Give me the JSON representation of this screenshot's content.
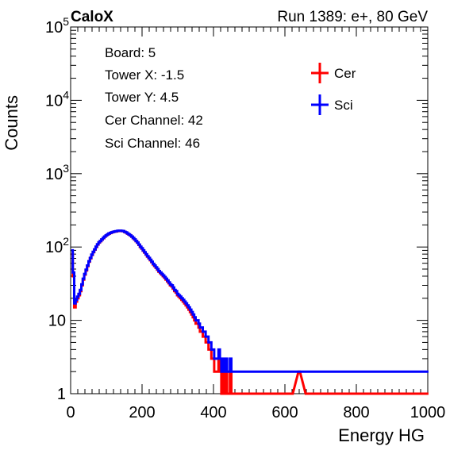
{
  "header": {
    "left": "CaloX",
    "right": "Run 1389: e+, 80 GeV"
  },
  "info_box": {
    "lines": [
      "Board: 5",
      "Tower X: -1.5",
      "Tower Y: 4.5",
      "Cer Channel: 42",
      "Sci Channel: 46"
    ]
  },
  "colors": {
    "cer": "#ff0000",
    "sci": "#0000ff",
    "axis": "#000000"
  },
  "chart_data": {
    "type": "histogram-step",
    "xlabel": "Energy HG",
    "ylabel": "Counts",
    "xlim": [
      0,
      1000
    ],
    "ylim": [
      1,
      100000
    ],
    "yscale": "log",
    "x_ticks": [
      0,
      200,
      400,
      600,
      800,
      1000
    ],
    "x_tick_labels": [
      "0",
      "200",
      "400",
      "600",
      "800",
      "1000"
    ],
    "y_ticks": [
      1,
      10,
      100,
      1000,
      10000,
      100000
    ],
    "y_tick_labels": [
      {
        "base": "1",
        "exp": ""
      },
      {
        "base": "10",
        "exp": ""
      },
      {
        "base": "10",
        "exp": "2"
      },
      {
        "base": "10",
        "exp": "3"
      },
      {
        "base": "10",
        "exp": "4"
      },
      {
        "base": "10",
        "exp": "5"
      }
    ],
    "legend": {
      "position": "top-right"
    },
    "series": [
      {
        "name": "Cer",
        "color": "#ff0000",
        "points": [
          [
            4,
            80
          ],
          [
            8,
            40
          ],
          [
            12,
            15
          ],
          [
            16,
            18
          ],
          [
            20,
            20
          ],
          [
            24,
            22
          ],
          [
            28,
            25
          ],
          [
            32,
            30
          ],
          [
            36,
            36
          ],
          [
            40,
            42
          ],
          [
            44,
            48
          ],
          [
            48,
            55
          ],
          [
            52,
            63
          ],
          [
            56,
            70
          ],
          [
            60,
            78
          ],
          [
            64,
            85
          ],
          [
            68,
            92
          ],
          [
            72,
            100
          ],
          [
            76,
            108
          ],
          [
            80,
            115
          ],
          [
            84,
            120
          ],
          [
            88,
            126
          ],
          [
            92,
            132
          ],
          [
            96,
            138
          ],
          [
            100,
            143
          ],
          [
            104,
            148
          ],
          [
            108,
            152
          ],
          [
            112,
            155
          ],
          [
            116,
            158
          ],
          [
            120,
            160
          ],
          [
            124,
            162
          ],
          [
            128,
            163
          ],
          [
            132,
            165
          ],
          [
            136,
            166
          ],
          [
            140,
            166
          ],
          [
            144,
            165
          ],
          [
            148,
            164
          ],
          [
            152,
            160
          ],
          [
            156,
            157
          ],
          [
            160,
            152
          ],
          [
            164,
            148
          ],
          [
            168,
            143
          ],
          [
            172,
            138
          ],
          [
            176,
            132
          ],
          [
            180,
            126
          ],
          [
            184,
            120
          ],
          [
            188,
            114
          ],
          [
            192,
            107
          ],
          [
            196,
            100
          ],
          [
            200,
            95
          ],
          [
            204,
            89
          ],
          [
            208,
            84
          ],
          [
            212,
            79
          ],
          [
            216,
            74
          ],
          [
            220,
            70
          ],
          [
            224,
            66
          ],
          [
            228,
            62
          ],
          [
            232,
            58
          ],
          [
            236,
            55
          ],
          [
            240,
            52
          ],
          [
            244,
            49
          ],
          [
            248,
            46
          ],
          [
            252,
            44
          ],
          [
            256,
            42
          ],
          [
            260,
            40
          ],
          [
            264,
            38
          ],
          [
            268,
            36
          ],
          [
            272,
            34
          ],
          [
            276,
            32
          ],
          [
            280,
            30
          ],
          [
            284,
            29
          ],
          [
            288,
            27
          ],
          [
            292,
            25
          ],
          [
            296,
            24
          ],
          [
            300,
            22
          ],
          [
            304,
            21
          ],
          [
            308,
            20
          ],
          [
            312,
            19
          ],
          [
            316,
            18
          ],
          [
            320,
            17
          ],
          [
            324,
            16
          ],
          [
            328,
            15
          ],
          [
            332,
            14
          ],
          [
            336,
            13
          ],
          [
            340,
            12
          ],
          [
            344,
            11
          ],
          [
            348,
            10
          ],
          [
            352,
            9
          ],
          [
            356,
            9
          ],
          [
            360,
            8
          ],
          [
            364,
            7
          ],
          [
            368,
            7
          ],
          [
            372,
            6
          ],
          [
            376,
            6
          ],
          [
            380,
            5
          ],
          [
            384,
            5
          ],
          [
            388,
            4
          ],
          [
            392,
            4
          ],
          [
            396,
            3
          ],
          [
            400,
            3
          ],
          [
            404,
            2
          ],
          [
            408,
            2
          ],
          [
            412,
            2
          ],
          [
            416,
            3
          ],
          [
            420,
            2
          ],
          [
            424,
            1
          ],
          [
            428,
            2
          ],
          [
            432,
            1
          ],
          [
            436,
            2
          ],
          [
            440,
            1
          ],
          [
            444,
            1
          ],
          [
            448,
            2
          ],
          [
            452,
            1
          ],
          [
            456,
            1
          ],
          [
            460,
            1
          ],
          [
            464,
            1
          ],
          [
            468,
            1
          ],
          [
            472,
            1
          ],
          [
            476,
            1
          ],
          [
            480,
            1
          ],
          [
            484,
            1
          ],
          [
            488,
            1
          ],
          [
            492,
            1
          ],
          [
            496,
            1
          ],
          [
            500,
            1
          ],
          [
            520,
            1
          ],
          [
            540,
            1
          ],
          [
            560,
            1
          ],
          [
            580,
            1
          ],
          [
            600,
            1
          ],
          [
            620,
            1
          ],
          [
            640,
            2
          ],
          [
            660,
            1
          ],
          [
            680,
            1
          ],
          [
            700,
            1
          ],
          [
            720,
            1
          ],
          [
            740,
            1
          ],
          [
            760,
            1
          ],
          [
            780,
            1
          ],
          [
            800,
            1
          ],
          [
            820,
            1
          ],
          [
            840,
            1
          ],
          [
            860,
            1
          ],
          [
            880,
            1
          ],
          [
            900,
            1
          ],
          [
            920,
            1
          ],
          [
            940,
            1
          ],
          [
            960,
            1
          ],
          [
            980,
            1
          ],
          [
            1000,
            1
          ]
        ]
      },
      {
        "name": "Sci",
        "color": "#0000ff",
        "points": [
          [
            4,
            90
          ],
          [
            8,
            45
          ],
          [
            12,
            17
          ],
          [
            16,
            19
          ],
          [
            20,
            21
          ],
          [
            24,
            23
          ],
          [
            28,
            26
          ],
          [
            32,
            31
          ],
          [
            36,
            37
          ],
          [
            40,
            43
          ],
          [
            44,
            49
          ],
          [
            48,
            56
          ],
          [
            52,
            64
          ],
          [
            56,
            71
          ],
          [
            60,
            79
          ],
          [
            64,
            86
          ],
          [
            68,
            93
          ],
          [
            72,
            101
          ],
          [
            76,
            109
          ],
          [
            80,
            116
          ],
          [
            84,
            121
          ],
          [
            88,
            127
          ],
          [
            92,
            133
          ],
          [
            96,
            139
          ],
          [
            100,
            144
          ],
          [
            104,
            149
          ],
          [
            108,
            153
          ],
          [
            112,
            156
          ],
          [
            116,
            159
          ],
          [
            120,
            161
          ],
          [
            124,
            163
          ],
          [
            128,
            164
          ],
          [
            132,
            166
          ],
          [
            136,
            167
          ],
          [
            140,
            167
          ],
          [
            144,
            166
          ],
          [
            148,
            165
          ],
          [
            152,
            161
          ],
          [
            156,
            158
          ],
          [
            160,
            153
          ],
          [
            164,
            149
          ],
          [
            168,
            144
          ],
          [
            172,
            139
          ],
          [
            176,
            133
          ],
          [
            180,
            127
          ],
          [
            184,
            121
          ],
          [
            188,
            115
          ],
          [
            192,
            108
          ],
          [
            196,
            101
          ],
          [
            200,
            96
          ],
          [
            204,
            90
          ],
          [
            208,
            85
          ],
          [
            212,
            80
          ],
          [
            216,
            75
          ],
          [
            220,
            71
          ],
          [
            224,
            67
          ],
          [
            228,
            63
          ],
          [
            232,
            59
          ],
          [
            236,
            56
          ],
          [
            240,
            53
          ],
          [
            244,
            50
          ],
          [
            248,
            47
          ],
          [
            252,
            45
          ],
          [
            256,
            43
          ],
          [
            260,
            41
          ],
          [
            264,
            39
          ],
          [
            268,
            37
          ],
          [
            272,
            35
          ],
          [
            276,
            33
          ],
          [
            280,
            31
          ],
          [
            284,
            30
          ],
          [
            288,
            28
          ],
          [
            292,
            26
          ],
          [
            296,
            25
          ],
          [
            300,
            23
          ],
          [
            304,
            22
          ],
          [
            308,
            21
          ],
          [
            312,
            20
          ],
          [
            316,
            19
          ],
          [
            320,
            18
          ],
          [
            324,
            17
          ],
          [
            328,
            16
          ],
          [
            332,
            15
          ],
          [
            336,
            14
          ],
          [
            340,
            13
          ],
          [
            344,
            12
          ],
          [
            348,
            11
          ],
          [
            352,
            10
          ],
          [
            356,
            10
          ],
          [
            360,
            9
          ],
          [
            364,
            8
          ],
          [
            368,
            8
          ],
          [
            372,
            7
          ],
          [
            376,
            7
          ],
          [
            380,
            6
          ],
          [
            384,
            6
          ],
          [
            388,
            5
          ],
          [
            392,
            5
          ],
          [
            396,
            4
          ],
          [
            400,
            4
          ],
          [
            404,
            3
          ],
          [
            408,
            3
          ],
          [
            412,
            3
          ],
          [
            416,
            4
          ],
          [
            420,
            3
          ],
          [
            424,
            2
          ],
          [
            428,
            3
          ],
          [
            432,
            2
          ],
          [
            436,
            3
          ],
          [
            440,
            2
          ],
          [
            444,
            2
          ],
          [
            448,
            3
          ],
          [
            452,
            2
          ],
          [
            456,
            2
          ],
          [
            460,
            2
          ],
          [
            464,
            2
          ],
          [
            468,
            2
          ],
          [
            472,
            2
          ],
          [
            476,
            2
          ],
          [
            480,
            2
          ],
          [
            484,
            2
          ],
          [
            488,
            2
          ],
          [
            492,
            2
          ],
          [
            496,
            2
          ],
          [
            500,
            2
          ],
          [
            520,
            2
          ],
          [
            540,
            2
          ],
          [
            560,
            2
          ],
          [
            580,
            2
          ],
          [
            600,
            2
          ],
          [
            620,
            2
          ],
          [
            640,
            2
          ],
          [
            660,
            2
          ],
          [
            680,
            2
          ],
          [
            700,
            2
          ],
          [
            720,
            2
          ],
          [
            740,
            2
          ],
          [
            760,
            2
          ],
          [
            780,
            2
          ],
          [
            800,
            2
          ],
          [
            820,
            2
          ],
          [
            840,
            2
          ],
          [
            860,
            2
          ],
          [
            880,
            2
          ],
          [
            900,
            2
          ],
          [
            920,
            2
          ],
          [
            940,
            2
          ],
          [
            960,
            2
          ],
          [
            980,
            2
          ],
          [
            1000,
            2
          ]
        ]
      }
    ]
  }
}
